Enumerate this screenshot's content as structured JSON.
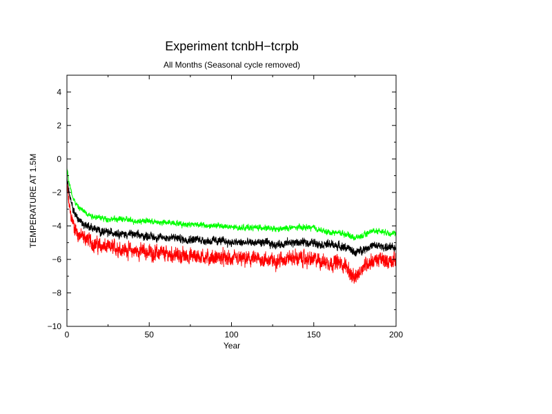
{
  "chart_data": {
    "type": "line",
    "title": "Experiment tcnbH−tcrpb",
    "subtitle": "All Months (Seasonal cycle removed)",
    "xlabel": "Year",
    "ylabel": "TEMPERATURE AT 1.5M",
    "xlim": [
      0,
      200
    ],
    "ylim": [
      -10,
      5
    ],
    "x_ticks": [
      0,
      50,
      100,
      150,
      200
    ],
    "y_ticks": [
      4,
      2,
      0,
      -2,
      -4,
      -6,
      -8,
      -10
    ],
    "x_tick_labels": [
      "0",
      "50",
      "100",
      "150",
      "200"
    ],
    "y_tick_labels": [
      "4",
      "2",
      "0",
      "−2",
      "−4",
      "−6",
      "−8",
      "−10"
    ],
    "grid": false,
    "legend": "none",
    "series": [
      {
        "color": "#ff0000",
        "x": [
          0,
          1,
          2,
          3,
          5,
          7,
          10,
          13,
          15,
          20,
          25,
          30,
          35,
          40,
          45,
          50,
          55,
          60,
          65,
          70,
          75,
          80,
          85,
          90,
          95,
          100,
          105,
          110,
          115,
          120,
          125,
          130,
          135,
          140,
          145,
          150,
          155,
          160,
          165,
          170,
          173,
          175,
          180,
          185,
          190,
          195,
          200
        ],
        "y": [
          -1.5,
          -2.5,
          -3.2,
          -3.6,
          -4.2,
          -4.5,
          -4.7,
          -4.8,
          -5.0,
          -5.2,
          -5.3,
          -5.3,
          -5.4,
          -5.5,
          -5.5,
          -5.6,
          -5.6,
          -5.7,
          -5.7,
          -5.8,
          -5.8,
          -5.8,
          -5.9,
          -5.9,
          -5.9,
          -6.0,
          -6.0,
          -6.0,
          -6.0,
          -6.0,
          -6.1,
          -6.0,
          -5.9,
          -5.9,
          -6.0,
          -6.0,
          -6.1,
          -6.2,
          -6.2,
          -6.4,
          -7.0,
          -7.2,
          -6.4,
          -6.1,
          -6.0,
          -6.1,
          -6.0
        ],
        "noise": 0.6
      },
      {
        "color": "#000000",
        "x": [
          0,
          1,
          2,
          3,
          5,
          7,
          10,
          13,
          15,
          20,
          25,
          30,
          35,
          40,
          45,
          50,
          55,
          60,
          65,
          70,
          75,
          80,
          85,
          90,
          95,
          100,
          105,
          110,
          115,
          120,
          125,
          130,
          135,
          140,
          145,
          150,
          155,
          160,
          165,
          170,
          175,
          180,
          185,
          190,
          195,
          200
        ],
        "y": [
          -1.0,
          -1.8,
          -2.4,
          -2.8,
          -3.3,
          -3.6,
          -3.9,
          -4.0,
          -4.1,
          -4.3,
          -4.4,
          -4.4,
          -4.5,
          -4.5,
          -4.6,
          -4.6,
          -4.7,
          -4.7,
          -4.7,
          -4.8,
          -4.8,
          -4.8,
          -4.9,
          -4.9,
          -4.9,
          -5.0,
          -5.0,
          -5.0,
          -5.0,
          -5.0,
          -5.1,
          -5.1,
          -5.0,
          -5.0,
          -5.0,
          -5.0,
          -5.1,
          -5.1,
          -5.2,
          -5.3,
          -5.6,
          -5.4,
          -5.2,
          -5.2,
          -5.3,
          -5.3
        ],
        "noise": 0.32
      },
      {
        "color": "#00ff00",
        "x": [
          0,
          1,
          2,
          3,
          5,
          7,
          10,
          13,
          15,
          20,
          25,
          30,
          35,
          40,
          45,
          50,
          55,
          60,
          65,
          70,
          75,
          80,
          85,
          90,
          95,
          100,
          105,
          110,
          115,
          120,
          125,
          130,
          135,
          140,
          145,
          150,
          155,
          160,
          165,
          170,
          175,
          180,
          185,
          190,
          195,
          200
        ],
        "y": [
          -0.5,
          -1.2,
          -1.7,
          -2.1,
          -2.6,
          -2.9,
          -3.1,
          -3.3,
          -3.4,
          -3.5,
          -3.6,
          -3.6,
          -3.6,
          -3.7,
          -3.7,
          -3.7,
          -3.8,
          -3.8,
          -3.8,
          -3.9,
          -3.9,
          -3.9,
          -4.0,
          -4.0,
          -4.0,
          -4.1,
          -4.1,
          -4.1,
          -4.1,
          -4.1,
          -4.2,
          -4.2,
          -4.1,
          -4.1,
          -4.1,
          -4.1,
          -4.3,
          -4.4,
          -4.4,
          -4.5,
          -4.7,
          -4.6,
          -4.3,
          -4.3,
          -4.4,
          -4.5
        ],
        "noise": 0.22
      }
    ]
  }
}
